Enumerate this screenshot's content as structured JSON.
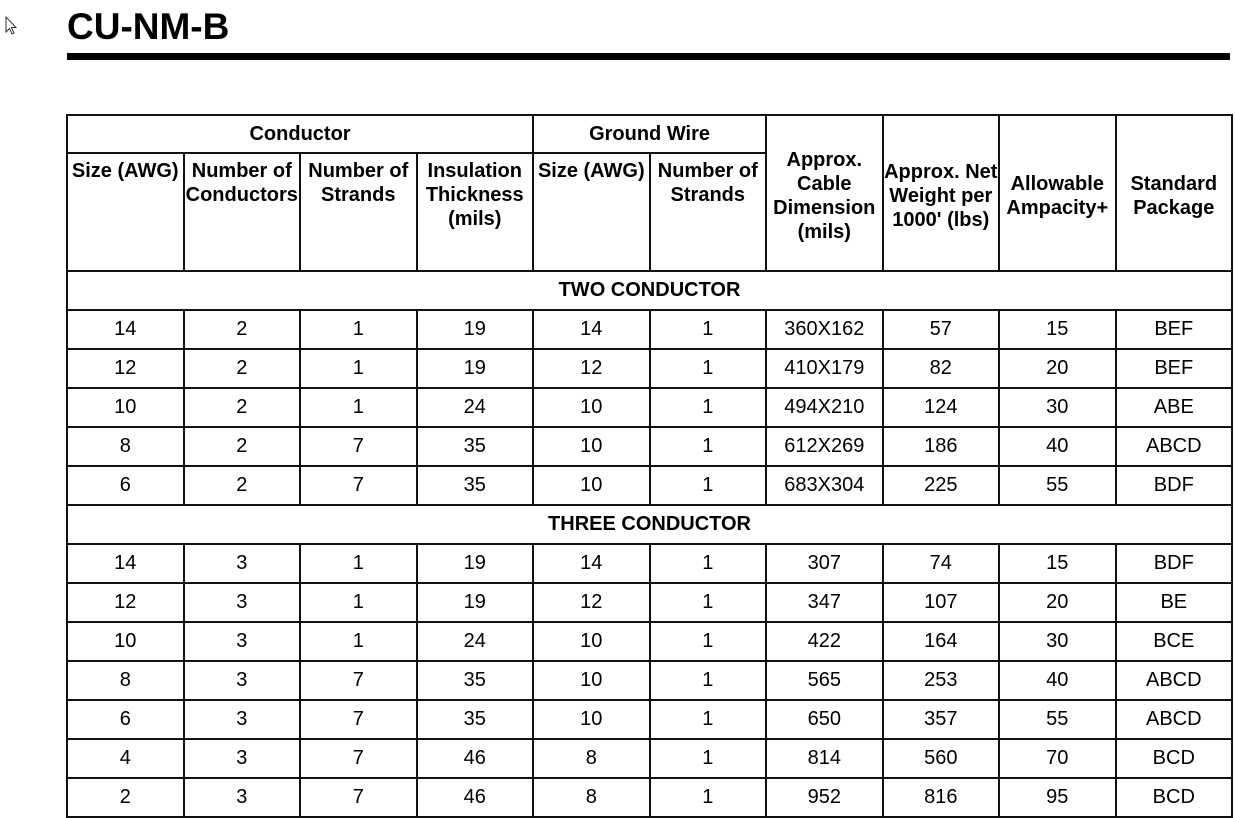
{
  "title": "CU-NM-B",
  "header": {
    "conductor": "Conductor",
    "ground_wire": "Ground Wire",
    "cable_dimension": "Approx. Cable Dimension (mils)",
    "net_weight": "Approx. Net Weight per 1000' (lbs)",
    "ampacity": "Allowable Ampacity+",
    "package": "Standard Package",
    "cond_size": "Size (AWG)",
    "cond_number": "Number of Conductors",
    "cond_strands": "Number of Strands",
    "insulation": "Insulation Thickness (mils)",
    "gw_size": "Size (AWG)",
    "gw_strands": "Number of Strands"
  },
  "sections": [
    {
      "label": "TWO CONDUCTOR",
      "rows": [
        [
          "14",
          "2",
          "1",
          "19",
          "14",
          "1",
          "360X162",
          "57",
          "15",
          "BEF"
        ],
        [
          "12",
          "2",
          "1",
          "19",
          "12",
          "1",
          "410X179",
          "82",
          "20",
          "BEF"
        ],
        [
          "10",
          "2",
          "1",
          "24",
          "10",
          "1",
          "494X210",
          "124",
          "30",
          "ABE"
        ],
        [
          "8",
          "2",
          "7",
          "35",
          "10",
          "1",
          "612X269",
          "186",
          "40",
          "ABCD"
        ],
        [
          "6",
          "2",
          "7",
          "35",
          "10",
          "1",
          "683X304",
          "225",
          "55",
          "BDF"
        ]
      ]
    },
    {
      "label": "THREE CONDUCTOR",
      "rows": [
        [
          "14",
          "3",
          "1",
          "19",
          "14",
          "1",
          "307",
          "74",
          "15",
          "BDF"
        ],
        [
          "12",
          "3",
          "1",
          "19",
          "12",
          "1",
          "347",
          "107",
          "20",
          "BE"
        ],
        [
          "10",
          "3",
          "1",
          "24",
          "10",
          "1",
          "422",
          "164",
          "30",
          "BCE"
        ],
        [
          "8",
          "3",
          "7",
          "35",
          "10",
          "1",
          "565",
          "253",
          "40",
          "ABCD"
        ],
        [
          "6",
          "3",
          "7",
          "35",
          "10",
          "1",
          "650",
          "357",
          "55",
          "ABCD"
        ],
        [
          "4",
          "3",
          "7",
          "46",
          "8",
          "1",
          "814",
          "560",
          "70",
          "BCD"
        ],
        [
          "2",
          "3",
          "7",
          "46",
          "8",
          "1",
          "952",
          "816",
          "95",
          "BCD"
        ]
      ]
    }
  ]
}
